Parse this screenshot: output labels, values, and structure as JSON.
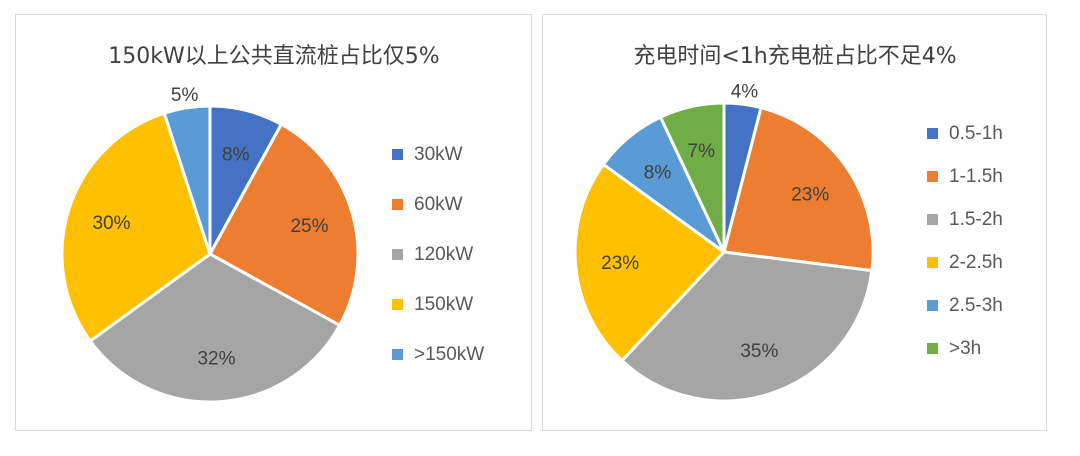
{
  "chart_data": [
    {
      "type": "pie",
      "title": "150kW以上公共直流桩占比仅5%",
      "categories": [
        "30kW",
        "60kW",
        "120kW",
        "150kW",
        ">150kW"
      ],
      "values": [
        8,
        25,
        32,
        30,
        5
      ],
      "labels": [
        "8%",
        "25%",
        "32%",
        "30%",
        "5%"
      ],
      "colors": [
        "#4472C4",
        "#ED7D31",
        "#A5A5A5",
        "#FFC000",
        "#5B9BD5"
      ],
      "legend_position": "right",
      "label_positions": [
        "inside",
        "inside",
        "inside",
        "inside",
        "outside"
      ]
    },
    {
      "type": "pie",
      "title": "充电时间<1h充电桩占比不足4%",
      "categories": [
        "0.5-1h",
        "1-1.5h",
        "1.5-2h",
        "2-2.5h",
        "2.5-3h",
        ">3h"
      ],
      "values": [
        4,
        23,
        35,
        23,
        8,
        7
      ],
      "labels": [
        "4%",
        "23%",
        "35%",
        "23%",
        "8%",
        "7%"
      ],
      "colors": [
        "#4472C4",
        "#ED7D31",
        "#A5A5A5",
        "#FFC000",
        "#5B9BD5",
        "#70AD47"
      ],
      "legend_position": "right",
      "label_positions": [
        "outside",
        "inside",
        "inside",
        "inside",
        "inside",
        "inside"
      ]
    }
  ]
}
